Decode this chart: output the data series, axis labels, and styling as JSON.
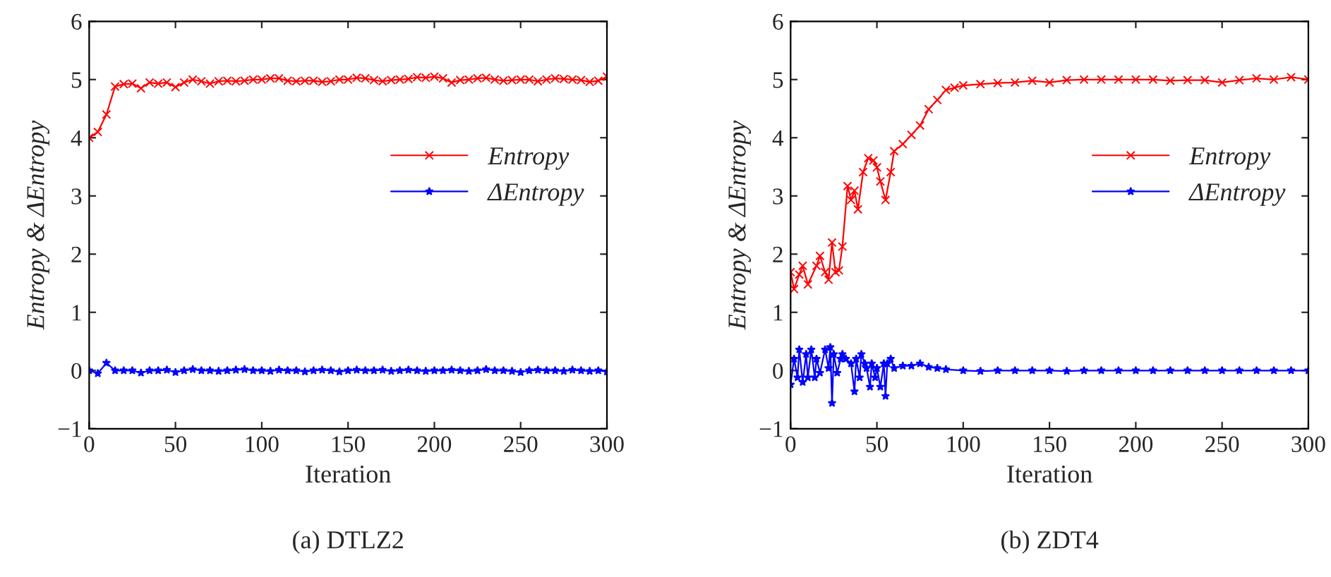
{
  "chart_data": [
    {
      "type": "line",
      "xlabel": "Iteration",
      "ylabel": "Entropy & ΔEntropy",
      "annotations": [
        "(a) DTLZ2"
      ],
      "xlim": [
        0,
        300
      ],
      "ylim": [
        -1,
        6
      ],
      "xticks": [
        0,
        50,
        100,
        150,
        200,
        250,
        300
      ],
      "yticks": [
        {
          "value": -1,
          "label": "−1"
        },
        0,
        1,
        2,
        3,
        4,
        5,
        6
      ],
      "grid": false,
      "legend": "right",
      "line_style": "solid",
      "x": [
        0,
        5,
        10,
        15,
        20,
        25,
        30,
        35,
        40,
        45,
        50,
        55,
        60,
        65,
        70,
        75,
        80,
        85,
        90,
        95,
        100,
        105,
        110,
        115,
        120,
        125,
        130,
        135,
        140,
        145,
        150,
        155,
        160,
        165,
        170,
        175,
        180,
        185,
        190,
        195,
        200,
        205,
        210,
        215,
        220,
        225,
        230,
        235,
        240,
        245,
        250,
        255,
        260,
        265,
        270,
        275,
        280,
        285,
        290,
        295,
        300
      ],
      "series": [
        {
          "name": "Entropy",
          "color": "#ff0000",
          "marker": "cross",
          "values": [
            4.0,
            4.1,
            4.4,
            4.88,
            4.92,
            4.93,
            4.85,
            4.95,
            4.93,
            4.95,
            4.87,
            4.95,
            5.0,
            4.97,
            4.93,
            4.97,
            4.98,
            4.97,
            4.98,
            5.0,
            5.0,
            5.02,
            5.02,
            4.98,
            4.97,
            4.98,
            4.98,
            4.96,
            4.97,
            5.0,
            5.0,
            5.03,
            5.02,
            4.99,
            4.97,
            4.99,
            5.0,
            5.01,
            5.04,
            5.03,
            5.05,
            5.02,
            4.95,
            4.99,
            5.0,
            5.02,
            5.03,
            5.0,
            4.98,
            4.99,
            5.0,
            5.0,
            4.97,
            5.0,
            5.02,
            5.01,
            5.0,
            4.99,
            4.96,
            4.98,
            5.05
          ]
        },
        {
          "name": "ΔEntropy",
          "color": "#0000ff",
          "marker": "star",
          "values": [
            0.0,
            -0.05,
            0.13,
            0.0,
            0.0,
            0.0,
            -0.04,
            0.0,
            0.0,
            0.01,
            -0.03,
            0.0,
            0.02,
            0.0,
            0.0,
            -0.01,
            0.0,
            0.01,
            0.02,
            0.0,
            0.0,
            -0.01,
            0.01,
            0.0,
            0.0,
            -0.02,
            0.0,
            0.01,
            0.0,
            -0.02,
            0.0,
            0.01,
            0.0,
            0.0,
            0.01,
            -0.01,
            0.0,
            0.01,
            0.0,
            -0.01,
            0.0,
            0.0,
            0.01,
            0.0,
            -0.01,
            0.0,
            0.02,
            0.0,
            0.0,
            -0.01,
            -0.03,
            0.0,
            0.01,
            0.0,
            0.0,
            -0.01,
            0.01,
            0.0,
            -0.01,
            0.0,
            -0.02
          ]
        }
      ]
    },
    {
      "type": "line",
      "xlabel": "Iteration",
      "ylabel": "Entropy & ΔEntropy",
      "annotations": [
        "(b) ZDT4"
      ],
      "xlim": [
        0,
        300
      ],
      "ylim": [
        -1,
        6
      ],
      "xticks": [
        0,
        50,
        100,
        150,
        200,
        250,
        300
      ],
      "yticks": [
        {
          "value": -1,
          "label": "−1"
        },
        0,
        1,
        2,
        3,
        4,
        5,
        6
      ],
      "grid": false,
      "legend": "right",
      "line_style": "solid",
      "series": [
        {
          "name": "Entropy",
          "color": "#ff0000",
          "marker": "cross",
          "x": [
            0,
            2,
            5,
            7,
            10,
            15,
            17,
            20,
            22,
            24,
            26,
            28,
            30,
            33,
            35,
            37,
            39,
            42,
            45,
            48,
            50,
            52,
            55,
            58,
            60,
            65,
            70,
            75,
            80,
            85,
            90,
            95,
            100,
            110,
            120,
            130,
            140,
            150,
            160,
            170,
            180,
            190,
            200,
            210,
            220,
            230,
            240,
            250,
            260,
            270,
            280,
            290,
            300
          ],
          "values": [
            1.69,
            1.4,
            1.65,
            1.8,
            1.48,
            1.8,
            1.97,
            1.69,
            1.56,
            2.2,
            1.69,
            1.72,
            2.13,
            3.17,
            2.93,
            3.09,
            2.77,
            3.41,
            3.65,
            3.61,
            3.49,
            3.25,
            2.93,
            3.41,
            3.77,
            3.89,
            4.05,
            4.21,
            4.49,
            4.65,
            4.82,
            4.86,
            4.9,
            4.92,
            4.94,
            4.95,
            4.98,
            4.95,
            4.99,
            5.0,
            5.0,
            5.0,
            5.0,
            5.0,
            4.98,
            4.99,
            4.99,
            4.95,
            4.99,
            5.02,
            5.0,
            5.04,
            5.0
          ]
        },
        {
          "name": "ΔEntropy",
          "color": "#0000ff",
          "marker": "star",
          "x": [
            0,
            2,
            4,
            5,
            7,
            9,
            10,
            12,
            14,
            15,
            17,
            20,
            22,
            23,
            24,
            25,
            27,
            29,
            30,
            32,
            35,
            37,
            38,
            40,
            41,
            43,
            44,
            46,
            47,
            49,
            50,
            52,
            54,
            55,
            56,
            58,
            60,
            65,
            70,
            75,
            80,
            85,
            90,
            100,
            110,
            120,
            130,
            140,
            150,
            160,
            170,
            180,
            190,
            200,
            210,
            220,
            230,
            240,
            250,
            260,
            270,
            280,
            290,
            300
          ],
          "values": [
            -0.24,
            0.2,
            -0.12,
            0.36,
            -0.2,
            0.28,
            -0.12,
            0.36,
            -0.12,
            0.2,
            -0.04,
            0.36,
            0.04,
            0.4,
            -0.56,
            0.28,
            -0.04,
            0.2,
            0.28,
            0.2,
            0.12,
            -0.36,
            0.2,
            -0.12,
            0.28,
            0.12,
            0.04,
            -0.28,
            0.12,
            -0.12,
            0.04,
            -0.28,
            0.12,
            -0.44,
            0.12,
            0.2,
            0.04,
            0.08,
            0.08,
            0.12,
            0.06,
            0.04,
            0.02,
            0.0,
            -0.01,
            0.0,
            0.0,
            0.0,
            0.0,
            -0.01,
            0.0,
            0.0,
            0.0,
            0.0,
            0.0,
            0.0,
            0.0,
            0.0,
            0.0,
            0.0,
            0.0,
            0.0,
            0.0,
            0.0
          ]
        }
      ]
    }
  ]
}
